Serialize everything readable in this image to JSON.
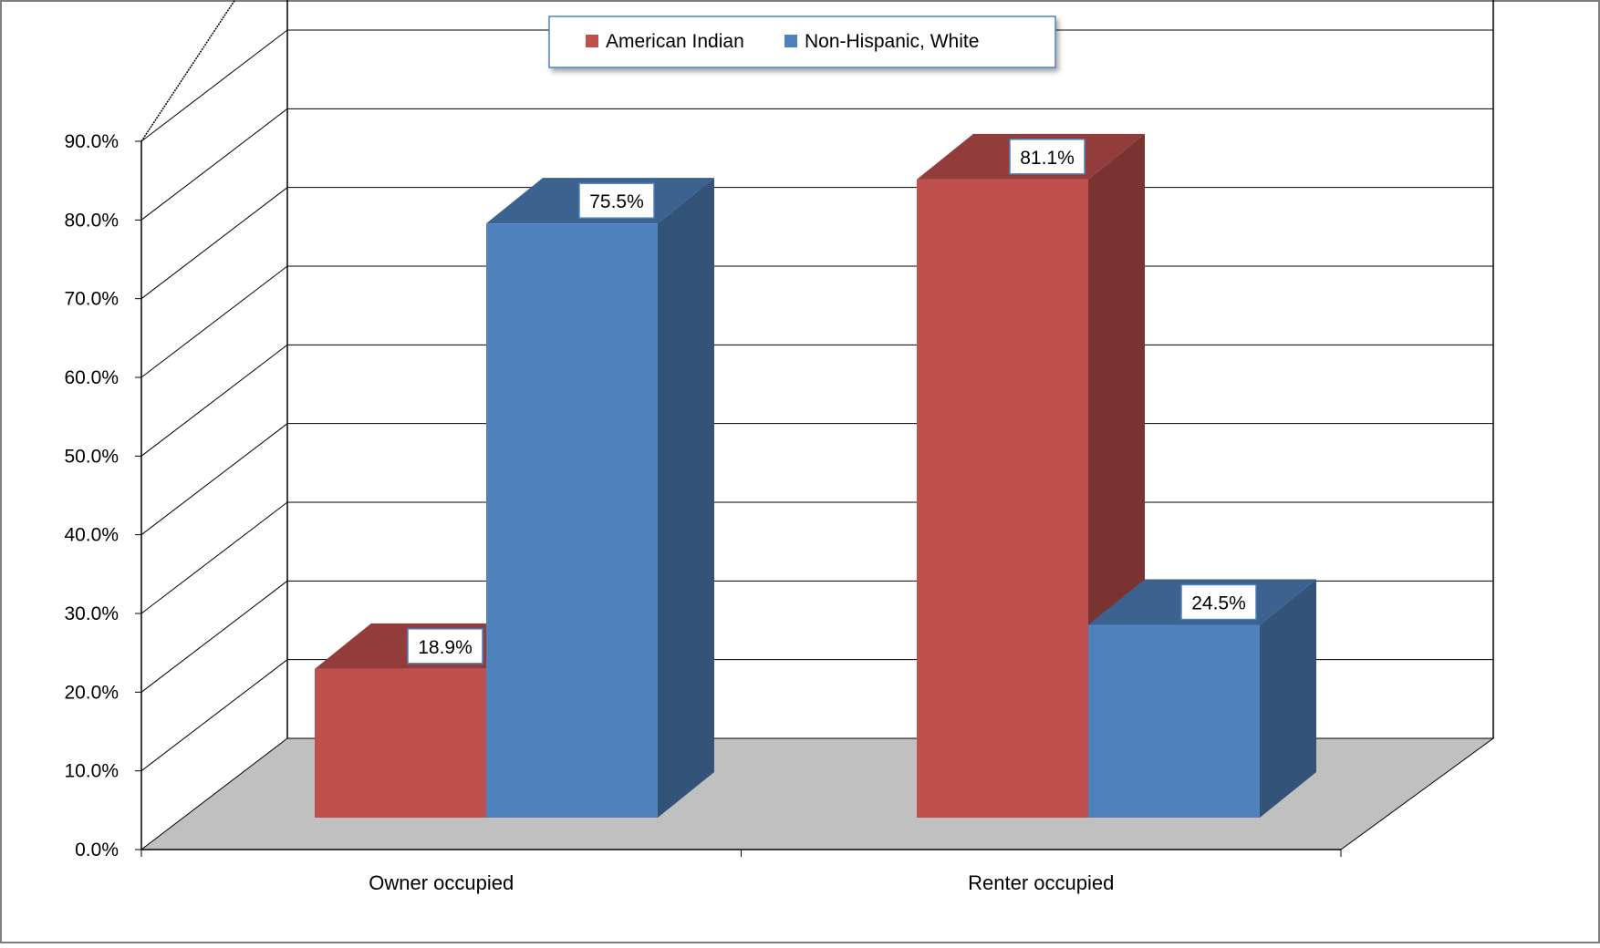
{
  "chart_data": {
    "type": "bar",
    "title": "",
    "xlabel": "",
    "ylabel": "",
    "categories": [
      "Owner occupied",
      "Renter occupied"
    ],
    "series": [
      {
        "name": "American Indian",
        "values": [
          18.9,
          81.1
        ],
        "labels": [
          "18.9%",
          "81.1%"
        ],
        "color": "#C0504D"
      },
      {
        "name": "Non-Hispanic, White",
        "values": [
          75.5,
          24.5
        ],
        "labels": [
          "75.5%",
          "24.5%"
        ],
        "color": "#4F81BD"
      }
    ],
    "ylim": [
      0,
      90
    ],
    "yticks": [
      "0.0%",
      "10.0%",
      "20.0%",
      "30.0%",
      "40.0%",
      "50.0%",
      "60.0%",
      "70.0%",
      "80.0%",
      "90.0%"
    ],
    "grid": true,
    "legend_position": "top-center",
    "style": "3d-clustered-column",
    "floor_color": "#C0C0C0"
  }
}
